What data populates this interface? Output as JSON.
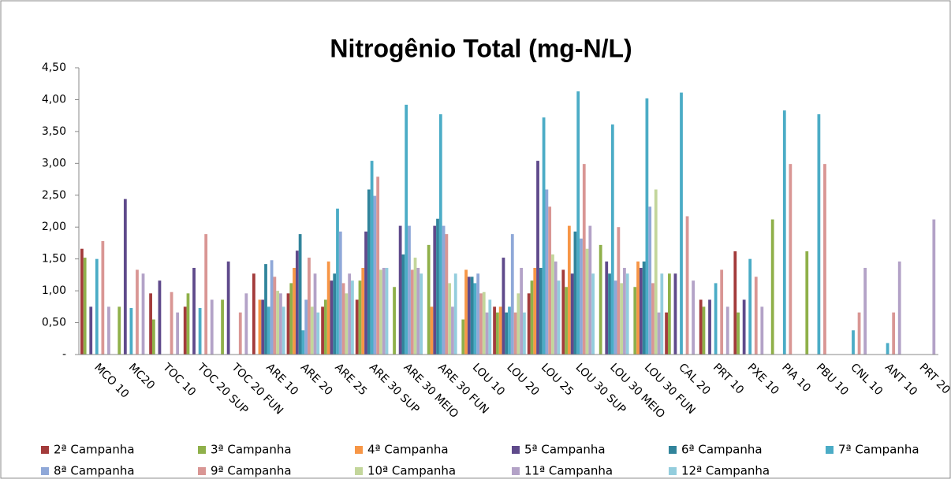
{
  "chart_data": {
    "type": "bar",
    "title": "Nitrogênio Total (mg-N/L)",
    "categories": [
      "MCO 10",
      "MC20",
      "TOC 10",
      "TOC 20 SUP",
      "TOC 20 FUN",
      "ARE 10",
      "ARE 20",
      "ARE 25",
      "ARE 30 SUP",
      "ARE 30 MEIO",
      "ARE 30 FUN",
      "LOU 10",
      "LOU 20",
      "LOU 25",
      "LOU 30 SUP",
      "LOU 30 MEIO",
      "LOU 30 FUN",
      "CAL 20",
      "PRT 10",
      "PXE 10",
      "PIA 10",
      "PBU 10",
      "CNL 10",
      "ANT 10",
      "PRT 20"
    ],
    "ylim": [
      0,
      4.5
    ],
    "yticks": [
      {
        "value": 0,
        "label": "-"
      },
      {
        "value": 0.5,
        "label": "0,50"
      },
      {
        "value": 1,
        "label": "1,00"
      },
      {
        "value": 1.5,
        "label": "1,50"
      },
      {
        "value": 2,
        "label": "2,00"
      },
      {
        "value": 2.5,
        "label": "2,50"
      },
      {
        "value": 3,
        "label": "3,00"
      },
      {
        "value": 3.5,
        "label": "3,50"
      },
      {
        "value": 4,
        "label": "4,00"
      },
      {
        "value": 4.5,
        "label": "4,50"
      }
    ],
    "grid": false,
    "legend": "bottom",
    "series": [
      {
        "name": "2ª Campanha",
        "color": "#a33b3b",
        "values": [
          1.66,
          null,
          0.96,
          0.75,
          null,
          1.27,
          0.96,
          0.75,
          0.86,
          null,
          null,
          null,
          0.75,
          0.96,
          1.33,
          null,
          null,
          0.66,
          0.86,
          1.62,
          null,
          null,
          null,
          null,
          null
        ]
      },
      {
        "name": "3ª Campanha",
        "color": "#8fb04a",
        "values": [
          1.52,
          0.75,
          0.55,
          0.96,
          0.86,
          null,
          1.12,
          0.86,
          1.16,
          1.06,
          1.72,
          0.55,
          0.66,
          1.16,
          1.06,
          1.72,
          1.06,
          1.27,
          0.75,
          0.66,
          2.12,
          1.62,
          null,
          null,
          null
        ]
      },
      {
        "name": "4ª Campanha",
        "color": "#f79646",
        "values": [
          null,
          null,
          null,
          null,
          null,
          0.86,
          1.36,
          1.46,
          1.36,
          null,
          0.75,
          1.33,
          0.75,
          1.36,
          2.02,
          null,
          1.46,
          null,
          null,
          null,
          null,
          null,
          null,
          null,
          null
        ]
      },
      {
        "name": "5ª Campanha",
        "color": "#5f4a8b",
        "values": [
          0.75,
          2.44,
          1.16,
          1.36,
          1.46,
          0.86,
          1.63,
          1.16,
          1.93,
          2.02,
          2.02,
          1.22,
          1.52,
          3.04,
          1.27,
          1.46,
          1.36,
          1.27,
          0.86,
          0.86,
          null,
          null,
          null,
          null,
          null
        ]
      },
      {
        "name": "6ª Campanha",
        "color": "#31849b",
        "values": [
          null,
          null,
          null,
          null,
          null,
          1.42,
          1.89,
          1.27,
          2.59,
          1.57,
          2.13,
          1.22,
          0.66,
          1.36,
          1.93,
          1.27,
          1.46,
          null,
          null,
          null,
          null,
          null,
          null,
          null,
          null
        ]
      },
      {
        "name": "7ª Campanha",
        "color": "#4bacc6",
        "values": [
          1.5,
          0.73,
          null,
          0.73,
          null,
          0.75,
          0.38,
          2.29,
          3.04,
          3.92,
          3.77,
          1.12,
          0.75,
          3.72,
          4.13,
          3.61,
          4.02,
          4.11,
          1.12,
          1.5,
          3.83,
          3.77,
          0.38,
          0.18,
          null
        ]
      },
      {
        "name": "8ª Campanha",
        "color": "#8fa8d8",
        "values": [
          null,
          null,
          null,
          null,
          null,
          1.48,
          0.86,
          1.93,
          2.49,
          2.02,
          2.02,
          1.27,
          1.89,
          2.59,
          1.82,
          1.16,
          2.32,
          null,
          null,
          null,
          null,
          null,
          null,
          null,
          null
        ]
      },
      {
        "name": "9ª Campanha",
        "color": "#d99694",
        "values": [
          1.78,
          1.33,
          0.98,
          1.89,
          0.66,
          1.22,
          1.52,
          1.12,
          2.79,
          1.33,
          1.89,
          0.96,
          0.66,
          2.32,
          2.99,
          2.0,
          1.12,
          2.17,
          1.33,
          1.22,
          2.99,
          2.99,
          0.66,
          0.66,
          null
        ]
      },
      {
        "name": "10ª Campanha",
        "color": "#c3d69b",
        "values": [
          null,
          null,
          null,
          null,
          null,
          1.0,
          0.75,
          0.96,
          1.33,
          1.52,
          1.12,
          0.98,
          0.96,
          1.57,
          1.66,
          1.12,
          2.59,
          null,
          null,
          null,
          null,
          null,
          null,
          null,
          null
        ]
      },
      {
        "name": "11ª Campanha",
        "color": "#b3a2c7",
        "values": [
          0.75,
          1.27,
          0.66,
          0.86,
          0.96,
          0.96,
          1.27,
          1.27,
          1.36,
          1.36,
          0.75,
          0.66,
          1.36,
          1.46,
          2.02,
          1.36,
          0.66,
          1.16,
          0.75,
          0.75,
          null,
          null,
          1.36,
          1.46,
          2.12
        ]
      },
      {
        "name": "12ª Campanha",
        "color": "#93cddd",
        "values": [
          null,
          null,
          null,
          null,
          null,
          0.75,
          0.66,
          1.16,
          1.36,
          1.27,
          1.27,
          0.86,
          0.66,
          1.16,
          1.27,
          1.27,
          1.27,
          null,
          null,
          null,
          null,
          null,
          null,
          null,
          null
        ]
      }
    ]
  }
}
